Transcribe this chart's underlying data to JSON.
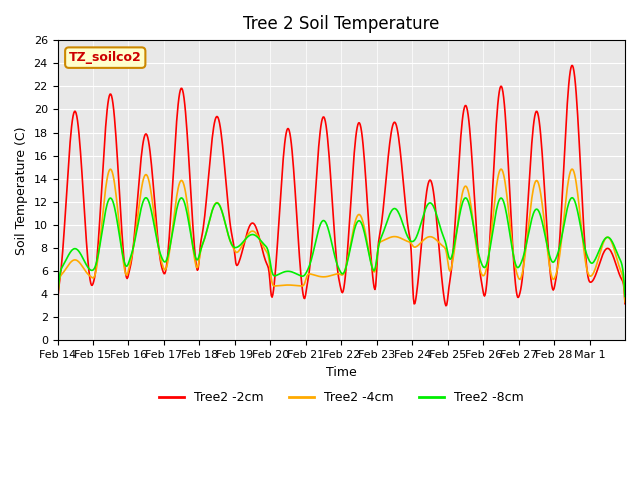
{
  "title": "Tree 2 Soil Temperature",
  "xlabel": "Time",
  "ylabel": "Soil Temperature (C)",
  "ylim": [
    0,
    26
  ],
  "yticks": [
    0,
    2,
    4,
    6,
    8,
    10,
    12,
    14,
    16,
    18,
    20,
    22,
    24,
    26
  ],
  "legend_label": "TZ_soilco2",
  "line1_label": "Tree2 -2cm",
  "line2_label": "Tree2 -4cm",
  "line3_label": "Tree2 -8cm",
  "line1_color": "#ff0000",
  "line2_color": "#ffaa00",
  "line3_color": "#00ee00",
  "xtick_labels": [
    "Feb 14",
    "Feb 15",
    "Feb 16",
    "Feb 17",
    "Feb 18",
    "Feb 19",
    "Feb 20",
    "Feb 21",
    "Feb 22",
    "Feb 23",
    "Feb 24",
    "Feb 25",
    "Feb 26",
    "Feb 27",
    "Feb 28",
    "Mar 1"
  ],
  "n_days": 16,
  "peaks2cm": [
    20.0,
    21.5,
    18.0,
    22.0,
    19.5,
    10.2,
    18.5,
    19.5,
    19.0,
    19.0,
    14.0,
    20.5,
    22.2,
    20.0,
    24.0,
    8.0
  ],
  "troughs2cm": [
    4.5,
    5.0,
    6.0,
    5.5,
    8.5,
    6.3,
    3.2,
    4.7,
    3.8,
    8.5,
    2.6,
    4.7,
    3.4,
    4.0,
    5.0,
    5.0
  ],
  "peaks4cm": [
    7.0,
    15.0,
    14.5,
    14.0,
    12.0,
    9.5,
    4.8,
    5.5,
    11.0,
    9.0,
    9.0,
    13.5,
    15.0,
    14.0,
    15.0,
    9.0
  ],
  "troughs4cm": [
    5.5,
    5.2,
    6.5,
    5.8,
    8.0,
    7.5,
    4.7,
    5.8,
    5.5,
    8.5,
    8.0,
    5.5,
    5.5,
    5.0,
    5.5,
    5.5
  ],
  "peaks8cm": [
    8.0,
    12.5,
    12.5,
    12.5,
    12.0,
    9.2,
    6.0,
    10.5,
    10.5,
    11.5,
    12.0,
    12.5,
    12.5,
    11.5,
    12.5,
    9.0
  ],
  "troughs8cm": [
    6.0,
    6.0,
    7.0,
    6.5,
    8.0,
    8.0,
    5.5,
    6.0,
    5.5,
    8.5,
    8.5,
    6.5,
    6.0,
    6.5,
    7.0,
    6.5
  ]
}
